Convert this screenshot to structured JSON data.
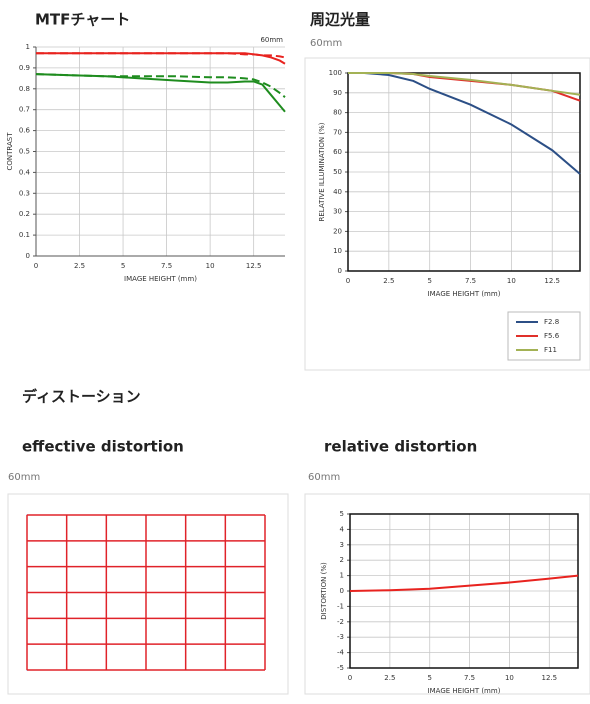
{
  "page": {
    "mtf_heading": "MTFチャート",
    "illumination_heading": "周辺光量",
    "illumination_focal": "60mm",
    "distortion_heading": "ディストーション",
    "effective_heading": "effective distortion",
    "relative_heading": "relative distortion",
    "effective_focal": "60mm",
    "relative_focal": "60mm"
  },
  "chart_data": [
    {
      "type": "line",
      "annotation": "60mm",
      "x_label": "IMAGE HEIGHT (mm)",
      "y_label": "CONTRAST",
      "x": [
        0,
        2,
        4,
        6,
        8,
        10,
        11,
        12,
        12.5,
        13,
        13.5,
        14,
        14.3
      ],
      "xlim": [
        0,
        14.3
      ],
      "ylim": [
        0,
        1
      ],
      "xticks": [
        0,
        2.5,
        5,
        7.5,
        10,
        12.5
      ],
      "yticks": [
        0,
        0.1,
        0.2,
        0.3,
        0.4,
        0.5,
        0.6,
        0.7,
        0.8,
        0.9,
        1
      ],
      "grid": true,
      "series": [
        {
          "color": "#e8231f",
          "style": "solid",
          "values": [
            0.97,
            0.97,
            0.97,
            0.97,
            0.97,
            0.97,
            0.97,
            0.97,
            0.965,
            0.96,
            0.95,
            0.935,
            0.92
          ]
        },
        {
          "color": "#e8231f",
          "style": "dashed",
          "values": [
            0.97,
            0.97,
            0.97,
            0.97,
            0.97,
            0.97,
            0.97,
            0.965,
            0.965,
            0.96,
            0.96,
            0.955,
            0.95
          ]
        },
        {
          "color": "#1e8c1e",
          "style": "solid",
          "values": [
            0.87,
            0.865,
            0.86,
            0.85,
            0.84,
            0.83,
            0.83,
            0.835,
            0.835,
            0.82,
            0.77,
            0.72,
            0.69
          ]
        },
        {
          "color": "#1e8c1e",
          "style": "dashed",
          "values": [
            0.87,
            0.865,
            0.86,
            0.86,
            0.86,
            0.855,
            0.855,
            0.85,
            0.845,
            0.83,
            0.81,
            0.78,
            0.76
          ]
        }
      ]
    },
    {
      "type": "line",
      "x_label": "IMAGE HEIGHT (mm)",
      "y_label": "RELATIVE ILLUMINATION (%)",
      "x": [
        0,
        1,
        2.5,
        4,
        5,
        7.5,
        10,
        12.5,
        14.2
      ],
      "xlim": [
        0,
        14.2
      ],
      "ylim": [
        0,
        100
      ],
      "xticks": [
        0,
        2.5,
        5,
        7.5,
        10,
        12.5
      ],
      "yticks": [
        0,
        10,
        20,
        30,
        40,
        50,
        60,
        70,
        80,
        90,
        100
      ],
      "grid": true,
      "legend": "bottom-right",
      "series": [
        {
          "name": "F2.8",
          "color": "#2c4f86",
          "values": [
            100,
            100,
            99,
            96,
            92,
            84,
            74,
            61,
            49
          ]
        },
        {
          "name": "F5.6",
          "color": "#e0302a",
          "values": [
            100,
            100,
            100,
            99.5,
            98,
            96,
            94,
            91,
            86
          ]
        },
        {
          "name": "F11",
          "color": "#a3b255",
          "values": [
            100,
            100,
            100,
            99.5,
            98.5,
            96.5,
            94,
            91,
            89
          ]
        }
      ]
    },
    {
      "type": "line",
      "x_label": "IMAGE HEIGHT (mm)",
      "y_label": "DISTORTION (%)",
      "x": [
        0,
        2.5,
        5,
        7.5,
        10,
        12.5,
        14.3
      ],
      "xlim": [
        0,
        14.3
      ],
      "ylim": [
        -5,
        5
      ],
      "xticks": [
        0,
        2.5,
        5,
        7.5,
        10,
        12.5
      ],
      "yticks": [
        -5,
        -4,
        -3,
        -2,
        -1,
        0,
        1,
        2,
        3,
        4,
        5
      ],
      "grid": true,
      "series": [
        {
          "color": "#e8231f",
          "values": [
            0,
            0.05,
            0.15,
            0.35,
            0.55,
            0.8,
            1.0
          ]
        }
      ]
    }
  ]
}
